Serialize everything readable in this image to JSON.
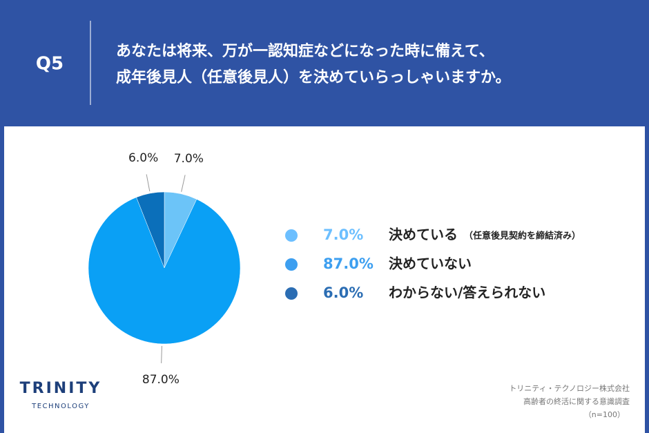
{
  "header": {
    "question_label": "Q5",
    "title_lines": [
      "あなたは将来、万が一認知症などになった時に備えて、",
      "成年後見人（任意後見人）を決めていらっしゃいますか。"
    ]
  },
  "chart_data": {
    "type": "pie",
    "categories": [
      "決めている",
      "決めていない",
      "わからない/答えられない"
    ],
    "legend_note": "（任意後見契約を締結済み）",
    "values": [
      7.0,
      87.0,
      6.0
    ],
    "value_labels": [
      "7.0%",
      "87.0%",
      "6.0%"
    ],
    "colors": [
      "#6cc4f8",
      "#0aa0f5",
      "#0b6fba"
    ],
    "legend_colors": [
      "#6cbfff",
      "#3d9ff0",
      "#2b6db3"
    ]
  },
  "logo": {
    "name": "TRINITY",
    "sub": "TECHNOLOGY"
  },
  "source": [
    "トリニティ・テクノロジー株式会社",
    "高齢者の終活に関する意識調査",
    "（n=100）"
  ]
}
